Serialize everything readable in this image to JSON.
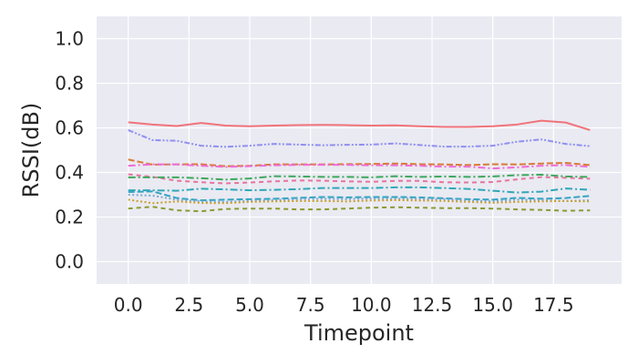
{
  "chart_data": {
    "type": "line",
    "title": "",
    "xlabel": "Timepoint",
    "ylabel": "RSSI(dB)",
    "xlim": [
      -1.3,
      20.3
    ],
    "ylim": [
      -0.1,
      1.1
    ],
    "xticks": [
      0.0,
      2.5,
      5.0,
      7.5,
      10.0,
      12.5,
      15.0,
      17.5
    ],
    "xtick_labels": [
      "0.0",
      "2.5",
      "5.0",
      "7.5",
      "10.0",
      "12.5",
      "15.0",
      "17.5"
    ],
    "yticks": [
      0.0,
      0.2,
      0.4,
      0.6,
      0.8,
      1.0
    ],
    "ytick_labels": [
      "0.0",
      "0.2",
      "0.4",
      "0.6",
      "0.8",
      "1.0"
    ],
    "grid": true,
    "background_color": "#eaeaf2",
    "grid_color": "#ffffff",
    "x": [
      0,
      1,
      2,
      3,
      4,
      5,
      6,
      7,
      8,
      9,
      10,
      11,
      12,
      13,
      14,
      15,
      16,
      17,
      18,
      19
    ],
    "series": [
      {
        "color": "#f0737a",
        "dash": "solid",
        "values": [
          0.625,
          0.615,
          0.608,
          0.622,
          0.61,
          0.607,
          0.61,
          0.612,
          0.613,
          0.612,
          0.61,
          0.611,
          0.607,
          0.604,
          0.604,
          0.607,
          0.615,
          0.632,
          0.624,
          0.59
        ]
      },
      {
        "color": "#8f8ff3",
        "dash": "dashdot2",
        "values": [
          0.59,
          0.545,
          0.542,
          0.52,
          0.515,
          0.52,
          0.528,
          0.525,
          0.522,
          0.524,
          0.525,
          0.53,
          0.523,
          0.516,
          0.516,
          0.52,
          0.538,
          0.548,
          0.528,
          0.518
        ]
      },
      {
        "color": "#d87a37",
        "dash": "dashed",
        "values": [
          0.458,
          0.435,
          0.436,
          0.437,
          0.428,
          0.43,
          0.436,
          0.436,
          0.436,
          0.437,
          0.438,
          0.44,
          0.437,
          0.436,
          0.433,
          0.437,
          0.436,
          0.44,
          0.443,
          0.433
        ]
      },
      {
        "color": "#ef6cd8",
        "dash": "dashdot",
        "values": [
          0.43,
          0.436,
          0.436,
          0.43,
          0.425,
          0.428,
          0.432,
          0.434,
          0.434,
          0.434,
          0.432,
          0.432,
          0.43,
          0.426,
          0.426,
          0.418,
          0.423,
          0.43,
          0.433,
          0.425
        ]
      },
      {
        "color": "#e7749e",
        "dash": "dashed2",
        "values": [
          0.392,
          0.38,
          0.363,
          0.356,
          0.351,
          0.355,
          0.36,
          0.364,
          0.363,
          0.36,
          0.358,
          0.362,
          0.362,
          0.356,
          0.355,
          0.357,
          0.369,
          0.379,
          0.376,
          0.372
        ]
      },
      {
        "color": "#3ea85b",
        "dash": "dashdot",
        "values": [
          0.378,
          0.378,
          0.378,
          0.374,
          0.368,
          0.373,
          0.383,
          0.382,
          0.38,
          0.38,
          0.378,
          0.383,
          0.38,
          0.382,
          0.38,
          0.382,
          0.388,
          0.39,
          0.382,
          0.38
        ]
      },
      {
        "color": "#2fa7b8",
        "dash": "dashdot",
        "values": [
          0.32,
          0.32,
          0.318,
          0.327,
          0.324,
          0.32,
          0.322,
          0.325,
          0.33,
          0.33,
          0.33,
          0.333,
          0.333,
          0.33,
          0.326,
          0.318,
          0.31,
          0.314,
          0.328,
          0.322
        ]
      },
      {
        "color": "#34a4c2",
        "dash": "dashed",
        "values": [
          0.312,
          0.315,
          0.285,
          0.275,
          0.278,
          0.28,
          0.282,
          0.286,
          0.29,
          0.288,
          0.29,
          0.29,
          0.288,
          0.284,
          0.28,
          0.278,
          0.286,
          0.282,
          0.285,
          0.295
        ]
      },
      {
        "color": "#7aa9cf",
        "dash": "dotted",
        "values": [
          0.3,
          0.296,
          0.278,
          0.27,
          0.268,
          0.272,
          0.276,
          0.28,
          0.282,
          0.28,
          0.283,
          0.282,
          0.282,
          0.28,
          0.275,
          0.27,
          0.278,
          0.276,
          0.272,
          0.275
        ]
      },
      {
        "color": "#c9a02e",
        "dash": "dotted",
        "values": [
          0.278,
          0.262,
          0.27,
          0.263,
          0.262,
          0.268,
          0.27,
          0.272,
          0.272,
          0.27,
          0.274,
          0.276,
          0.274,
          0.272,
          0.268,
          0.264,
          0.268,
          0.27,
          0.272,
          0.27
        ]
      },
      {
        "color": "#8b9a32",
        "dash": "dashed2",
        "values": [
          0.238,
          0.246,
          0.23,
          0.226,
          0.236,
          0.238,
          0.238,
          0.234,
          0.234,
          0.238,
          0.242,
          0.244,
          0.242,
          0.24,
          0.24,
          0.238,
          0.234,
          0.232,
          0.228,
          0.23
        ]
      }
    ]
  }
}
